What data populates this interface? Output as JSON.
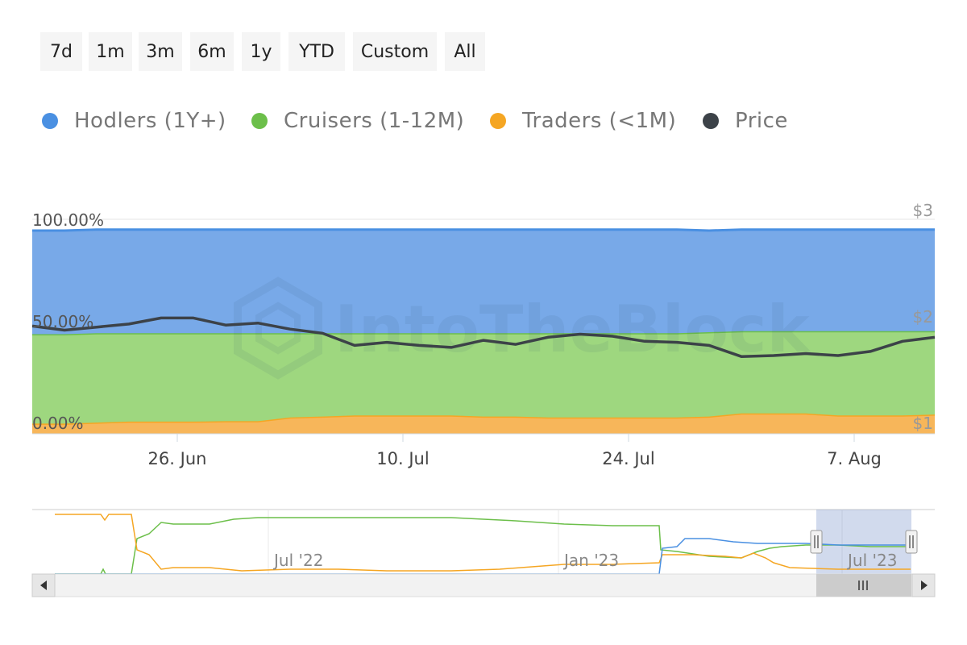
{
  "range_selector": {
    "buttons": [
      "7d",
      "1m",
      "3m",
      "6m",
      "1y",
      "YTD",
      "Custom",
      "All"
    ]
  },
  "legend": [
    {
      "label": "Hodlers (1Y+)",
      "color": "#4a90e2",
      "icon": "legend-dot"
    },
    {
      "label": "Cruisers (1-12M)",
      "color": "#6cbf4a",
      "icon": "legend-dot"
    },
    {
      "label": "Traders (<1M)",
      "color": "#f5a623",
      "icon": "legend-dot"
    },
    {
      "label": "Price",
      "color": "#3c4248",
      "icon": "legend-dot"
    }
  ],
  "watermark": "IntoTheBlock",
  "chart_data": {
    "type": "area",
    "title": "",
    "x_dates": [
      "2023-06-17",
      "2023-06-19",
      "2023-06-21",
      "2023-06-23",
      "2023-06-25",
      "2023-06-27",
      "2023-06-29",
      "2023-07-01",
      "2023-07-03",
      "2023-07-05",
      "2023-07-07",
      "2023-07-09",
      "2023-07-11",
      "2023-07-13",
      "2023-07-15",
      "2023-07-17",
      "2023-07-19",
      "2023-07-21",
      "2023-07-23",
      "2023-07-25",
      "2023-07-27",
      "2023-07-29",
      "2023-07-31",
      "2023-08-02",
      "2023-08-04",
      "2023-08-06",
      "2023-08-08",
      "2023-08-10",
      "2023-08-12"
    ],
    "x_tick_labels": [
      "26. Jun",
      "10. Jul",
      "24. Jul",
      "7. Aug"
    ],
    "x_tick_dates": [
      "2023-06-26",
      "2023-07-10",
      "2023-07-24",
      "2023-08-07"
    ],
    "y_left_ticks": [
      "100.00%",
      "50.00%",
      "0.00%"
    ],
    "y_left_range": [
      0,
      100
    ],
    "y_right_ticks": [
      "$3",
      "$2",
      "$1"
    ],
    "y_right_range": [
      1,
      3
    ],
    "series": [
      {
        "name": "Hodlers (1Y+)",
        "color": "#4a90e2",
        "values": [
          51,
          51,
          51,
          51,
          51,
          51,
          51,
          51,
          51,
          51,
          51,
          51,
          51,
          51,
          51,
          51,
          51,
          51,
          51,
          51,
          51,
          50,
          50,
          50,
          50,
          50,
          50,
          50,
          50
        ]
      },
      {
        "name": "Cruisers (1-12M)",
        "color": "#6cbf4a",
        "values": [
          44,
          44,
          44,
          43.5,
          43.5,
          43.5,
          43.3,
          43.3,
          41.5,
          41,
          40.5,
          40.5,
          40.5,
          40.5,
          41,
          41,
          41.5,
          41.5,
          41.5,
          41.5,
          41.5,
          41.5,
          40.5,
          40.5,
          40.5,
          41.5,
          41.5,
          41.5,
          41
        ]
      },
      {
        "name": "Traders (<1M)",
        "color": "#f5a623",
        "values": [
          5,
          5,
          5.5,
          6,
          6,
          6,
          6.2,
          6.2,
          8,
          8.5,
          9,
          9,
          9,
          9,
          8.5,
          8.5,
          8,
          8,
          8,
          8,
          8,
          8.5,
          10,
          10,
          10,
          9,
          9,
          9,
          9.5
        ]
      }
    ],
    "price_series": {
      "name": "Price",
      "color": "#3c4248",
      "values": [
        2.06,
        2.02,
        2.05,
        2.08,
        2.14,
        2.14,
        2.07,
        2.09,
        2.03,
        1.99,
        1.87,
        1.9,
        1.87,
        1.85,
        1.92,
        1.88,
        1.95,
        1.98,
        1.96,
        1.91,
        1.9,
        1.87,
        1.76,
        1.77,
        1.79,
        1.77,
        1.81,
        1.91,
        1.95
      ]
    },
    "navigator": {
      "x_tick_labels": [
        "Jul '22",
        "Jan '23",
        "Jul '23"
      ],
      "selected_range": [
        "2023-06-17",
        "2023-08-12"
      ]
    }
  }
}
